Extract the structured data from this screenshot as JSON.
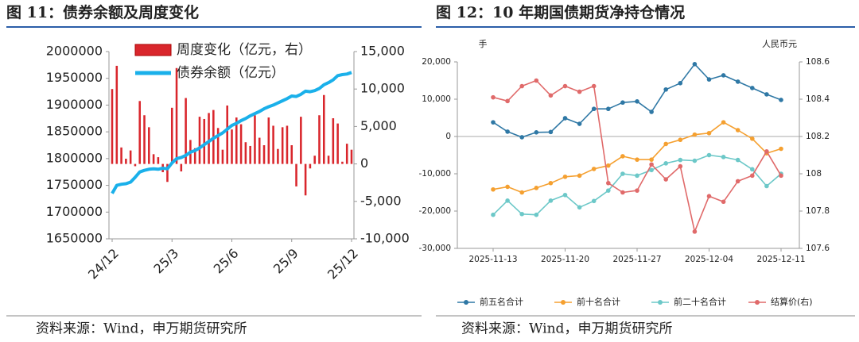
{
  "chart_data": [
    {
      "type": "combo",
      "title": "图 11：债券余额及周度变化",
      "source": "资料来源：Wind，申万期货研究所",
      "categories": [
        "24/12",
        null,
        null,
        null,
        null,
        null,
        null,
        null,
        null,
        null,
        null,
        null,
        null,
        "25/3",
        null,
        null,
        null,
        null,
        null,
        null,
        null,
        null,
        null,
        null,
        null,
        null,
        "25/6",
        null,
        null,
        null,
        null,
        null,
        null,
        null,
        null,
        null,
        null,
        null,
        null,
        "25/9",
        null,
        null,
        null,
        null,
        null,
        null,
        null,
        null,
        null,
        null,
        null,
        null,
        "25/12"
      ],
      "series": [
        {
          "name": "周度变化（亿元，右）",
          "type": "bar",
          "axis": "y2",
          "color": "#d9262c",
          "values": [
            10000,
            13100,
            2200,
            700,
            1800,
            -300,
            8400,
            6500,
            4900,
            1300,
            900,
            -1100,
            -2400,
            7500,
            12800,
            -1000,
            8800,
            3200,
            2100,
            6300,
            6000,
            6800,
            7200,
            4800,
            1900,
            7800,
            4600,
            6200,
            5300,
            2900,
            2400,
            6500,
            3500,
            2500,
            6200,
            5100,
            2000,
            4900,
            5100,
            2500,
            -3000,
            6300,
            -4200,
            -600,
            1100,
            6500,
            9200,
            1100,
            6100,
            5400,
            300,
            2700,
            1900
          ]
        },
        {
          "name": "债券余额（亿元）",
          "type": "line",
          "color": "#1ab0ea",
          "values": [
            1735000,
            1750000,
            1752000,
            1753000,
            1756000,
            1765000,
            1775000,
            1778000,
            1780000,
            1781000,
            1780000,
            1782000,
            1781000,
            1792000,
            1800000,
            1802000,
            1806000,
            1812000,
            1815000,
            1820000,
            1826000,
            1832000,
            1838000,
            1843000,
            1848000,
            1855000,
            1862000,
            1866000,
            1871000,
            1875000,
            1880000,
            1884000,
            1888000,
            1893000,
            1897000,
            1900000,
            1904000,
            1908000,
            1912000,
            1917000,
            1916000,
            1920000,
            1926000,
            1925000,
            1927000,
            1931000,
            1938000,
            1942000,
            1947000,
            1955000,
            1957000,
            1958000,
            1961000
          ]
        }
      ],
      "ylim": [
        1650000,
        2000000
      ],
      "yticks": [
        1650000,
        1700000,
        1750000,
        1800000,
        1850000,
        1900000,
        1950000,
        2000000
      ],
      "y2lim": [
        -10000,
        15000
      ],
      "y2ticks": [
        {
          "value": -10000,
          "label": "-10,000"
        },
        {
          "value": -5000,
          "label": "-5,000"
        },
        0,
        {
          "value": 5000,
          "label": "5,000"
        },
        {
          "value": 10000,
          "label": "10,000"
        },
        {
          "value": 15000,
          "label": "15,000"
        }
      ],
      "legend": "upper left"
    },
    {
      "type": "line",
      "title": "图 12：10 年期国债期货净持仓情况",
      "source": "资料来源：Wind，申万期货研究所",
      "y_label": "手",
      "y2_label": "人民币元",
      "categories": [
        "2025-11-13",
        null,
        null,
        null,
        null,
        "2025-11-20",
        null,
        null,
        null,
        null,
        "2025-11-27",
        null,
        null,
        null,
        null,
        "2025-12-04",
        null,
        null,
        null,
        null,
        "2025-12-11"
      ],
      "series": [
        {
          "name": "前五名合计",
          "color": "#2f78a5",
          "values": [
            3800,
            1300,
            -200,
            1100,
            1200,
            4900,
            3400,
            7400,
            7400,
            9100,
            9400,
            6600,
            12600,
            14300,
            19400,
            15300,
            16400,
            14700,
            13000,
            11300,
            9800
          ]
        },
        {
          "name": "前十名合计",
          "color": "#f5a030",
          "values": [
            -14200,
            -13500,
            -15000,
            -13800,
            -12500,
            -10800,
            -10500,
            -8700,
            -7800,
            -5300,
            -6200,
            -6200,
            -2000,
            -900,
            500,
            900,
            3800,
            1700,
            -600,
            -4500,
            -3300
          ]
        },
        {
          "name": "前二十名合计",
          "color": "#6cc8c8",
          "values": [
            -21000,
            -17200,
            -20800,
            -21000,
            -17200,
            -15700,
            -19000,
            -17300,
            -14500,
            -10000,
            -10500,
            -9000,
            -7200,
            -6300,
            -6500,
            -5000,
            -5500,
            -6300,
            -8800,
            -13300,
            -10000
          ]
        },
        {
          "name": "结算价(右)",
          "color": "#e06a6a",
          "axis": "y2",
          "values": [
            108.41,
            108.39,
            108.47,
            108.5,
            108.42,
            108.47,
            108.44,
            108.47,
            107.95,
            107.9,
            107.91,
            108.05,
            107.97,
            108.04,
            107.69,
            107.88,
            107.85,
            107.96,
            107.99,
            108.12,
            107.99
          ]
        }
      ],
      "ylim": [
        -30000,
        20000
      ],
      "yticks": [
        {
          "value": -30000,
          "label": "-30,000"
        },
        {
          "value": -20000,
          "label": "-20,000"
        },
        {
          "value": -10000,
          "label": "-10,000"
        },
        0,
        {
          "value": 10000,
          "label": "10,000"
        },
        {
          "value": 20000,
          "label": "20,000"
        }
      ],
      "y2lim": [
        107.6,
        108.6
      ],
      "y2ticks": [
        107.6,
        107.8,
        108,
        108.2,
        108.4,
        108.6
      ],
      "zero_line": true,
      "markers": true,
      "legend": "bottom"
    }
  ]
}
